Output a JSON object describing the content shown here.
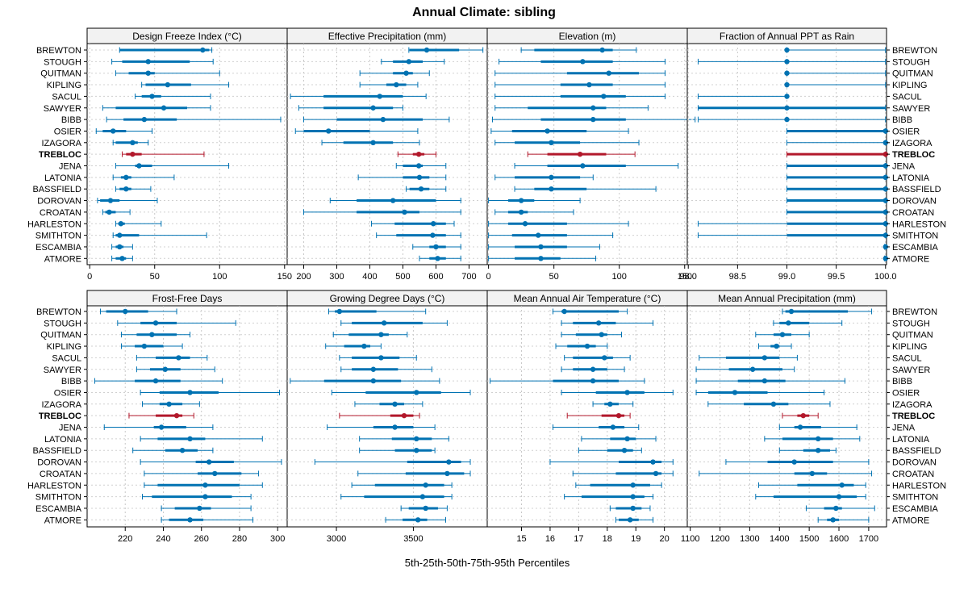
{
  "chart_data": {
    "type": "percentile-interval",
    "title": "Annual Climate: sibling",
    "xlabel": "5th-25th-50th-75th-95th Percentiles",
    "sites": [
      "BREWTON",
      "STOUGH",
      "QUITMAN",
      "KIPLING",
      "SACUL",
      "SAWYER",
      "BIBB",
      "OSIER",
      "IZAGORA",
      "TREBLOC",
      "JENA",
      "LATONIA",
      "BASSFIELD",
      "DOROVAN",
      "CROATAN",
      "HARLESTON",
      "SMITHTON",
      "ESCAMBIA",
      "ATMORE"
    ],
    "highlight": "TREBLOC",
    "colors": {
      "series": "#0072b2",
      "highlight": "#b2182b"
    },
    "panels": [
      {
        "title": "Design Freeze Index (°C)",
        "xlim": [
          -2,
          152
        ],
        "ticks": [
          0,
          50,
          100,
          150
        ],
        "values": [
          [
            23,
            23,
            87,
            92,
            94
          ],
          [
            17,
            25,
            45,
            77,
            95
          ],
          [
            20,
            30,
            45,
            50,
            100
          ],
          [
            40,
            43,
            60,
            78,
            107
          ],
          [
            35,
            40,
            48,
            55,
            93
          ],
          [
            10,
            20,
            57,
            75,
            93
          ],
          [
            13,
            26,
            42,
            67,
            147
          ],
          [
            5,
            10,
            18,
            28,
            48
          ],
          [
            18,
            20,
            33,
            37,
            45
          ],
          [
            25,
            28,
            33,
            40,
            88
          ],
          [
            20,
            35,
            38,
            48,
            107
          ],
          [
            18,
            24,
            28,
            32,
            65
          ],
          [
            20,
            23,
            28,
            32,
            47
          ],
          [
            6,
            8,
            16,
            23,
            52
          ],
          [
            10,
            12,
            15,
            20,
            31
          ],
          [
            20,
            22,
            24,
            27,
            55
          ],
          [
            18,
            20,
            23,
            38,
            90
          ],
          [
            17,
            20,
            23,
            26,
            33
          ],
          [
            17,
            20,
            25,
            28,
            33
          ]
        ]
      },
      {
        "title": "Effective Precipitation (mm)",
        "xlim": [
          150,
          755
        ],
        "ticks": [
          200,
          300,
          400,
          500,
          600,
          700
        ],
        "values": [
          [
            518,
            520,
            572,
            670,
            742
          ],
          [
            435,
            470,
            518,
            560,
            625
          ],
          [
            370,
            470,
            510,
            530,
            580
          ],
          [
            370,
            450,
            480,
            510,
            545
          ],
          [
            160,
            260,
            430,
            500,
            570
          ],
          [
            185,
            260,
            410,
            470,
            500
          ],
          [
            200,
            300,
            440,
            560,
            640
          ],
          [
            175,
            200,
            275,
            400,
            545
          ],
          [
            255,
            320,
            410,
            470,
            550
          ],
          [
            485,
            530,
            548,
            565,
            600
          ],
          [
            480,
            500,
            548,
            560,
            630
          ],
          [
            365,
            500,
            550,
            580,
            630
          ],
          [
            510,
            520,
            555,
            580,
            630
          ],
          [
            280,
            360,
            470,
            600,
            675
          ],
          [
            200,
            360,
            505,
            550,
            675
          ],
          [
            405,
            475,
            592,
            630,
            655
          ],
          [
            420,
            480,
            590,
            630,
            675
          ],
          [
            530,
            580,
            600,
            630,
            675
          ],
          [
            550,
            580,
            605,
            630,
            675
          ]
        ]
      },
      {
        "title": "Elevation (m)",
        "xlim": [
          -1,
          152
        ],
        "ticks": [
          0,
          50,
          100,
          150
        ],
        "values": [
          [
            25,
            35,
            87,
            95,
            113
          ],
          [
            8,
            40,
            72,
            95,
            135
          ],
          [
            5,
            60,
            92,
            115,
            135
          ],
          [
            5,
            55,
            77,
            95,
            135
          ],
          [
            5,
            55,
            88,
            105,
            135
          ],
          [
            5,
            30,
            80,
            90,
            122
          ],
          [
            3,
            40,
            80,
            105,
            158
          ],
          [
            2,
            18,
            45,
            75,
            107
          ],
          [
            5,
            20,
            48,
            70,
            115
          ],
          [
            30,
            45,
            70,
            90,
            112
          ],
          [
            20,
            45,
            72,
            105,
            145
          ],
          [
            5,
            20,
            48,
            70,
            80
          ],
          [
            20,
            35,
            48,
            75,
            128
          ],
          [
            0,
            15,
            25,
            35,
            70
          ],
          [
            5,
            15,
            25,
            30,
            65
          ],
          [
            0,
            15,
            28,
            60,
            107
          ],
          [
            0,
            18,
            38,
            60,
            95
          ],
          [
            0,
            20,
            40,
            60,
            85
          ],
          [
            0,
            20,
            40,
            55,
            82
          ]
        ]
      },
      {
        "title": "Fraction of Annual PPT as Rain",
        "xlim": [
          97.99,
          100.01
        ],
        "ticks": [
          98.0,
          98.5,
          99.0,
          99.5,
          100.0
        ],
        "tickLabels": [
          "98.0",
          "98.5",
          "99.0",
          "99.5",
          "100.0"
        ],
        "values": [
          [
            99,
            99,
            99,
            99,
            100
          ],
          [
            98.1,
            99,
            99,
            99,
            100
          ],
          [
            99,
            99,
            99,
            99,
            100
          ],
          [
            99,
            99,
            99,
            99,
            100
          ],
          [
            98.1,
            99,
            99,
            99,
            99
          ],
          [
            98.1,
            98.1,
            99,
            100,
            100
          ],
          [
            98.1,
            99,
            99,
            99,
            100
          ],
          [
            99,
            99,
            100,
            100,
            100
          ],
          [
            99,
            99.99,
            100,
            100,
            100
          ],
          [
            99,
            99,
            100,
            100,
            100
          ],
          [
            99,
            99,
            100,
            100,
            100
          ],
          [
            99,
            99,
            100,
            100,
            100
          ],
          [
            99,
            99,
            100,
            100,
            100
          ],
          [
            99,
            99,
            100,
            100,
            100
          ],
          [
            99,
            99,
            100,
            100,
            100
          ],
          [
            98.1,
            99,
            100,
            100,
            100
          ],
          [
            98.1,
            99,
            100,
            100,
            100
          ],
          [
            99.99,
            100,
            100,
            100,
            100
          ],
          [
            99.99,
            100,
            100,
            100,
            100
          ]
        ]
      },
      {
        "title": "Frost-Free Days",
        "xlim": [
          200,
          305
        ],
        "ticks": [
          220,
          240,
          260,
          280,
          300
        ],
        "values": [
          [
            207,
            210,
            220,
            232,
            247
          ],
          [
            216,
            228,
            236,
            247,
            278
          ],
          [
            218,
            226,
            234,
            247,
            254
          ],
          [
            218,
            225,
            230,
            240,
            250
          ],
          [
            226,
            236,
            248,
            254,
            263
          ],
          [
            226,
            233,
            241,
            249,
            267
          ],
          [
            204,
            225,
            236,
            249,
            271
          ],
          [
            228,
            238,
            254,
            269,
            301
          ],
          [
            229,
            238,
            243,
            250,
            259
          ],
          [
            222,
            236,
            247,
            250,
            256
          ],
          [
            209,
            235,
            239,
            252,
            266
          ],
          [
            228,
            237,
            254,
            262,
            292
          ],
          [
            224,
            241,
            250,
            258,
            266
          ],
          [
            228,
            257,
            264,
            277,
            302
          ],
          [
            230,
            258,
            267,
            281,
            290
          ],
          [
            230,
            237,
            262,
            280,
            292
          ],
          [
            229,
            234,
            262,
            276,
            286
          ],
          [
            239,
            246,
            259,
            265,
            286
          ],
          [
            239,
            243,
            254,
            261,
            287
          ]
        ]
      },
      {
        "title": "Growing Degree Days (°C)",
        "xlim": [
          2680,
          3980
        ],
        "ticks": [
          3000,
          3500
        ],
        "values": [
          [
            2950,
            2990,
            3020,
            3260,
            3580
          ],
          [
            3030,
            3100,
            3310,
            3560,
            3720
          ],
          [
            2980,
            3080,
            3290,
            3340,
            3460
          ],
          [
            2930,
            3050,
            3180,
            3220,
            3290
          ],
          [
            3020,
            3100,
            3290,
            3410,
            3520
          ],
          [
            3030,
            3100,
            3240,
            3400,
            3620
          ],
          [
            2700,
            2920,
            3240,
            3420,
            3670
          ],
          [
            2970,
            3190,
            3520,
            3680,
            3870
          ],
          [
            3120,
            3280,
            3380,
            3440,
            3560
          ],
          [
            3020,
            3350,
            3440,
            3500,
            3540
          ],
          [
            2940,
            3240,
            3380,
            3500,
            3640
          ],
          [
            3150,
            3360,
            3520,
            3620,
            3730
          ],
          [
            3150,
            3380,
            3520,
            3620,
            3640
          ],
          [
            2860,
            3460,
            3730,
            3810,
            3870
          ],
          [
            3140,
            3450,
            3720,
            3830,
            3870
          ],
          [
            3100,
            3250,
            3580,
            3700,
            3750
          ],
          [
            3030,
            3180,
            3560,
            3700,
            3750
          ],
          [
            3420,
            3470,
            3580,
            3660,
            3720
          ],
          [
            3320,
            3430,
            3530,
            3590,
            3710
          ]
        ]
      },
      {
        "title": "Mean Annual Air Temperature (°C)",
        "xlim": [
          13.8,
          20.8
        ],
        "ticks": [
          15,
          16,
          17,
          18,
          19,
          20
        ],
        "values": [
          [
            16.1,
            16.4,
            16.5,
            18.4,
            18.7
          ],
          [
            16.4,
            16.8,
            17.7,
            18.3,
            19.6
          ],
          [
            16.4,
            16.9,
            17.8,
            18.0,
            18.5
          ],
          [
            16.2,
            16.6,
            17.3,
            17.6,
            18.0
          ],
          [
            16.5,
            16.8,
            17.9,
            18.2,
            18.8
          ],
          [
            16.4,
            16.8,
            17.5,
            18.0,
            18.6
          ],
          [
            13.9,
            16.1,
            17.5,
            18.4,
            19.3
          ],
          [
            16.4,
            17.6,
            18.7,
            19.3,
            20.3
          ],
          [
            17.5,
            17.9,
            18.1,
            18.4,
            18.9
          ],
          [
            16.6,
            17.8,
            18.4,
            18.6,
            18.8
          ],
          [
            16.1,
            17.7,
            18.2,
            18.6,
            19.1
          ],
          [
            17.1,
            18.1,
            18.7,
            19.0,
            19.7
          ],
          [
            17.0,
            18.0,
            18.6,
            18.9,
            19.2
          ],
          [
            16.0,
            18.4,
            19.6,
            19.9,
            20.3
          ],
          [
            16.8,
            18.3,
            19.7,
            19.9,
            20.3
          ],
          [
            16.9,
            17.4,
            18.9,
            19.5,
            19.9
          ],
          [
            16.5,
            17.1,
            18.9,
            19.3,
            19.6
          ],
          [
            18.1,
            18.3,
            18.9,
            19.2,
            19.5
          ],
          [
            18.3,
            18.4,
            18.8,
            19.1,
            19.6
          ]
        ]
      },
      {
        "title": "Mean Annual Precipitation (mm)",
        "xlim": [
          1090,
          1760
        ],
        "ticks": [
          1100,
          1200,
          1300,
          1400,
          1500,
          1600,
          1700
        ],
        "tickLabels": [
          "1100",
          "1200",
          "1300",
          "1400",
          "1500",
          "1600",
          "1700"
        ],
        "values": [
          [
            1410,
            1420,
            1440,
            1630,
            1710
          ],
          [
            1380,
            1400,
            1430,
            1500,
            1610
          ],
          [
            1320,
            1380,
            1410,
            1440,
            1500
          ],
          [
            1330,
            1370,
            1390,
            1400,
            1440
          ],
          [
            1130,
            1220,
            1350,
            1400,
            1460
          ],
          [
            1120,
            1230,
            1310,
            1410,
            1450
          ],
          [
            1120,
            1260,
            1350,
            1420,
            1620
          ],
          [
            1120,
            1160,
            1250,
            1360,
            1550
          ],
          [
            1160,
            1280,
            1380,
            1430,
            1570
          ],
          [
            1410,
            1460,
            1480,
            1500,
            1530
          ],
          [
            1400,
            1450,
            1470,
            1540,
            1660
          ],
          [
            1350,
            1410,
            1530,
            1580,
            1670
          ],
          [
            1400,
            1480,
            1530,
            1570,
            1590
          ],
          [
            1220,
            1360,
            1450,
            1580,
            1700
          ],
          [
            1130,
            1450,
            1510,
            1560,
            1710
          ],
          [
            1330,
            1460,
            1610,
            1650,
            1690
          ],
          [
            1320,
            1380,
            1600,
            1660,
            1690
          ],
          [
            1490,
            1550,
            1590,
            1610,
            1720
          ],
          [
            1530,
            1560,
            1580,
            1600,
            1700
          ]
        ]
      }
    ]
  }
}
